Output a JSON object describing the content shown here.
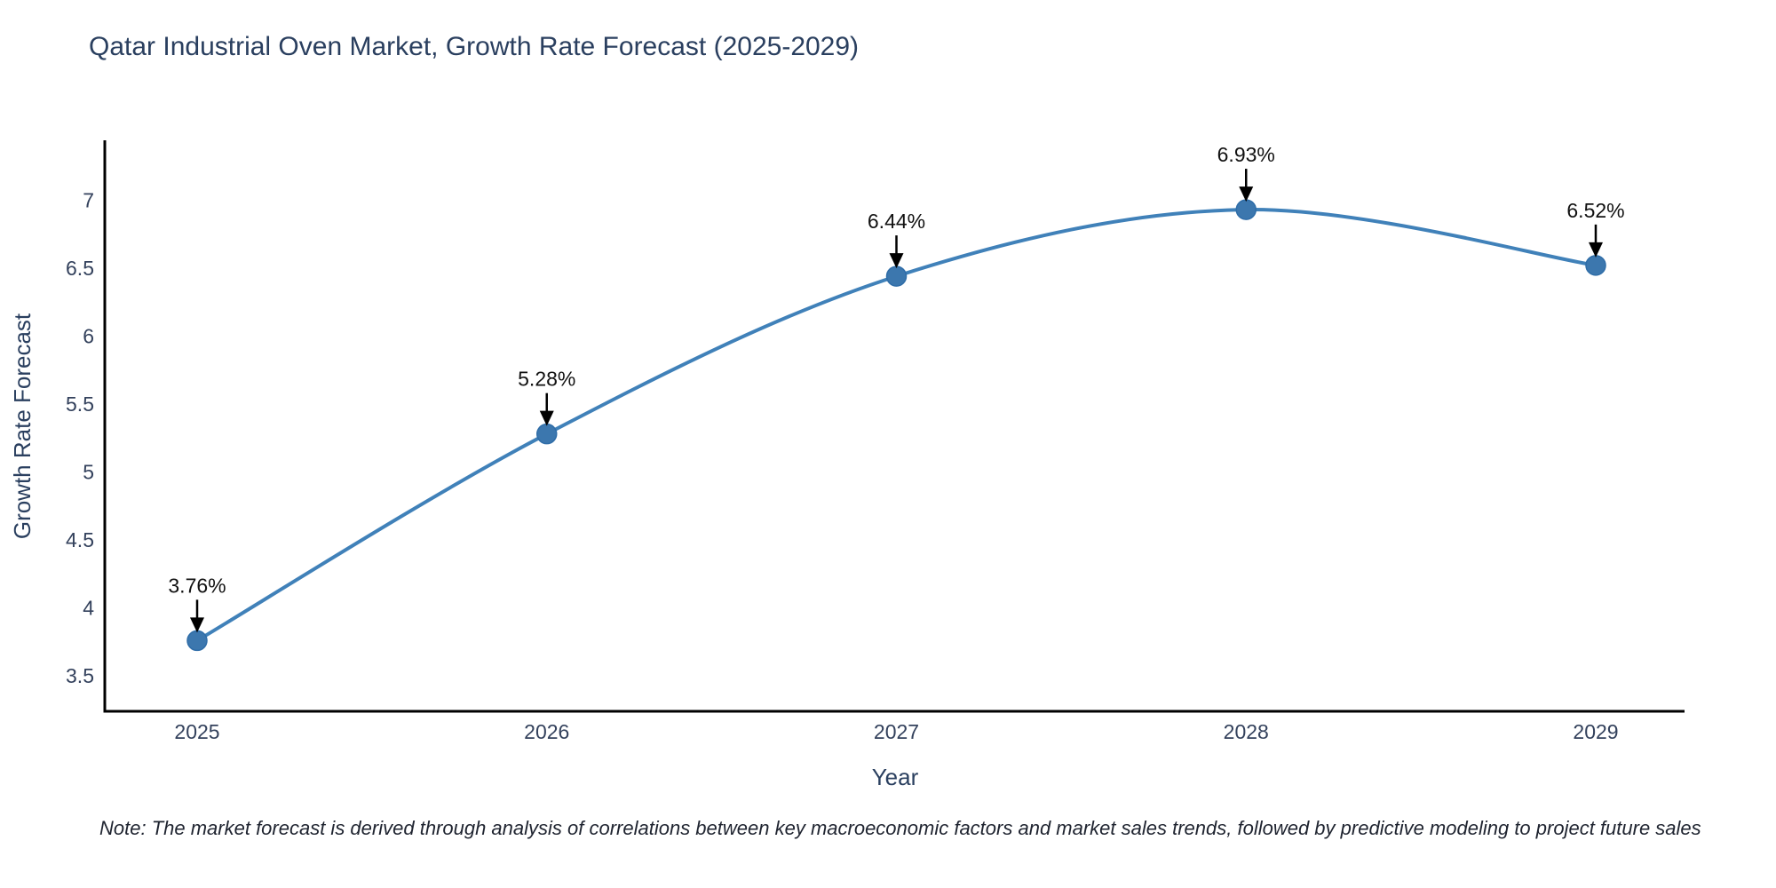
{
  "note": "Note: The market forecast is derived through analysis of correlations between key macroeconomic factors and market sales trends, followed by predictive modeling to project future sales",
  "chart_data": {
    "type": "line",
    "title": "Qatar Industrial Oven Market, Growth Rate Forecast (2025-2029)",
    "xlabel": "Year",
    "ylabel": "Growth Rate Forecast",
    "x": [
      "2025",
      "2026",
      "2027",
      "2028",
      "2029"
    ],
    "values": [
      3.76,
      5.28,
      6.44,
      6.93,
      6.52
    ],
    "point_labels": [
      "3.76%",
      "5.28%",
      "6.44%",
      "6.93%",
      "6.52%"
    ],
    "yticks": [
      3.5,
      4,
      4.5,
      5,
      5.5,
      6,
      6.5,
      7
    ],
    "ylim": [
      3.24,
      7.44
    ],
    "grid": false,
    "legend": "none",
    "line_shape": "spline",
    "line_color": "#4081b9",
    "marker_color": "#3c77ae",
    "marker_edge_color": "#2f6da8",
    "axis_color": "#000000",
    "arrow_color": "#000000",
    "title_color": "#2a3f5f",
    "background_color": "#ffffff"
  }
}
